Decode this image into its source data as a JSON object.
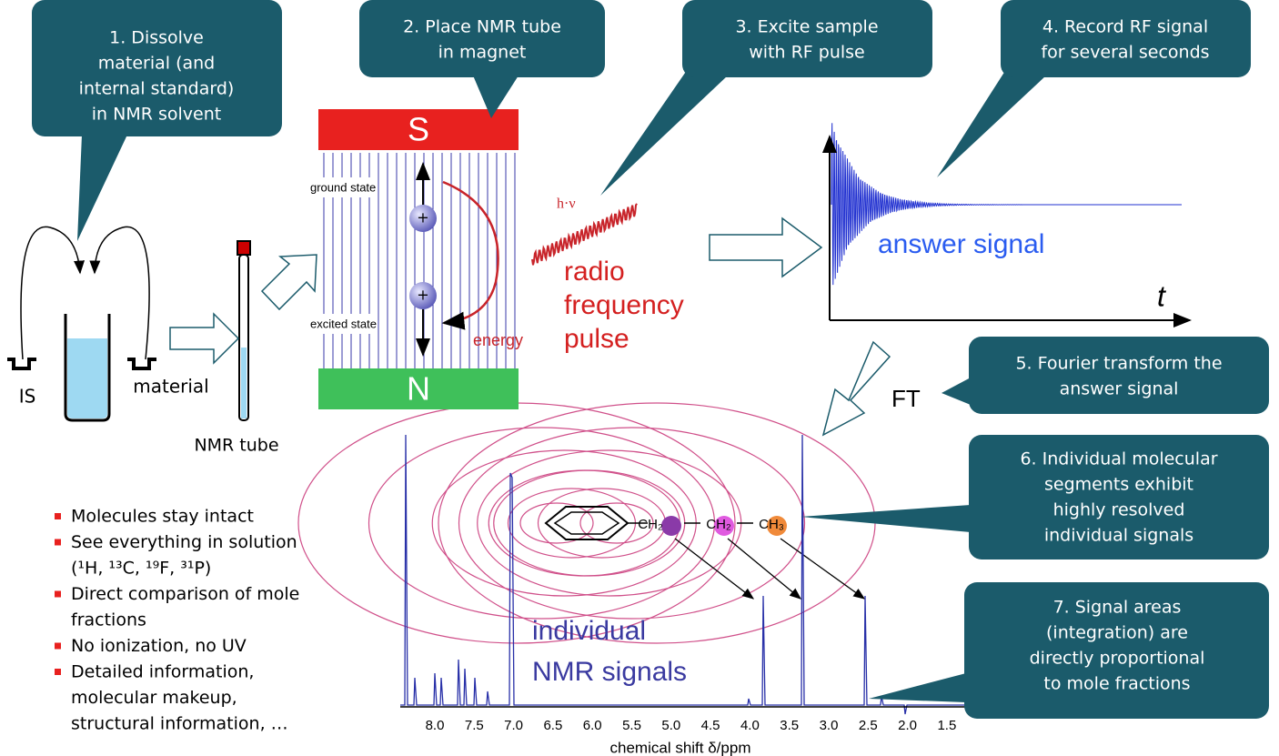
{
  "callouts": [
    {
      "lines": [
        "1. Dissolve",
        "material (and",
        "internal standard)",
        "in NMR solvent"
      ]
    },
    {
      "lines": [
        "2. Place NMR tube",
        "in magnet"
      ]
    },
    {
      "lines": [
        "3. Excite sample",
        "with RF pulse"
      ]
    },
    {
      "lines": [
        "4. Record RF signal",
        "for several seconds"
      ]
    },
    {
      "lines": [
        "5. Fourier transform the",
        "answer signal"
      ]
    },
    {
      "lines": [
        "6. Individual molecular",
        "segments exhibit",
        "highly resolved",
        "individual signals"
      ]
    },
    {
      "lines": [
        "7. Signal areas",
        "(integration) are",
        "directly  proportional",
        "to mole fractions"
      ]
    }
  ],
  "sample": {
    "is_label": "IS",
    "material_label": "material",
    "tube_label": "NMR tube"
  },
  "magnet": {
    "south": "S",
    "north": "N",
    "ground": "ground state",
    "excited": "excited state",
    "energy": "energy",
    "photon": "h·ν"
  },
  "pulse_label": [
    "radio",
    "frequency",
    "pulse"
  ],
  "fid": {
    "label": "answer signal",
    "axis": "t"
  },
  "ft_label": "FT",
  "molecule": {
    "groups": [
      "CH₂",
      "CH₂",
      "CH₃"
    ]
  },
  "signals_label": [
    "individual",
    "NMR signals"
  ],
  "spectrum": {
    "ticks": [
      "8.0",
      "7.5",
      "7.0",
      "6.5",
      "6.0",
      "5.5",
      "5.0",
      "4.5",
      "4.0",
      "3.5",
      "3.0",
      "2.5",
      "2.0",
      "1.5"
    ],
    "axis_label": "chemical shift  δ/ppm"
  },
  "bullets": [
    [
      "Molecules stay intact"
    ],
    [
      "See everything in solution",
      "(¹H, ¹³C, ¹⁹F, ³¹P)"
    ],
    [
      "Direct comparison of mole",
      "fractions"
    ],
    [
      "No ionization, no UV"
    ],
    [
      "Detailed information,",
      "molecular makeup,",
      "structural information, …"
    ]
  ]
}
